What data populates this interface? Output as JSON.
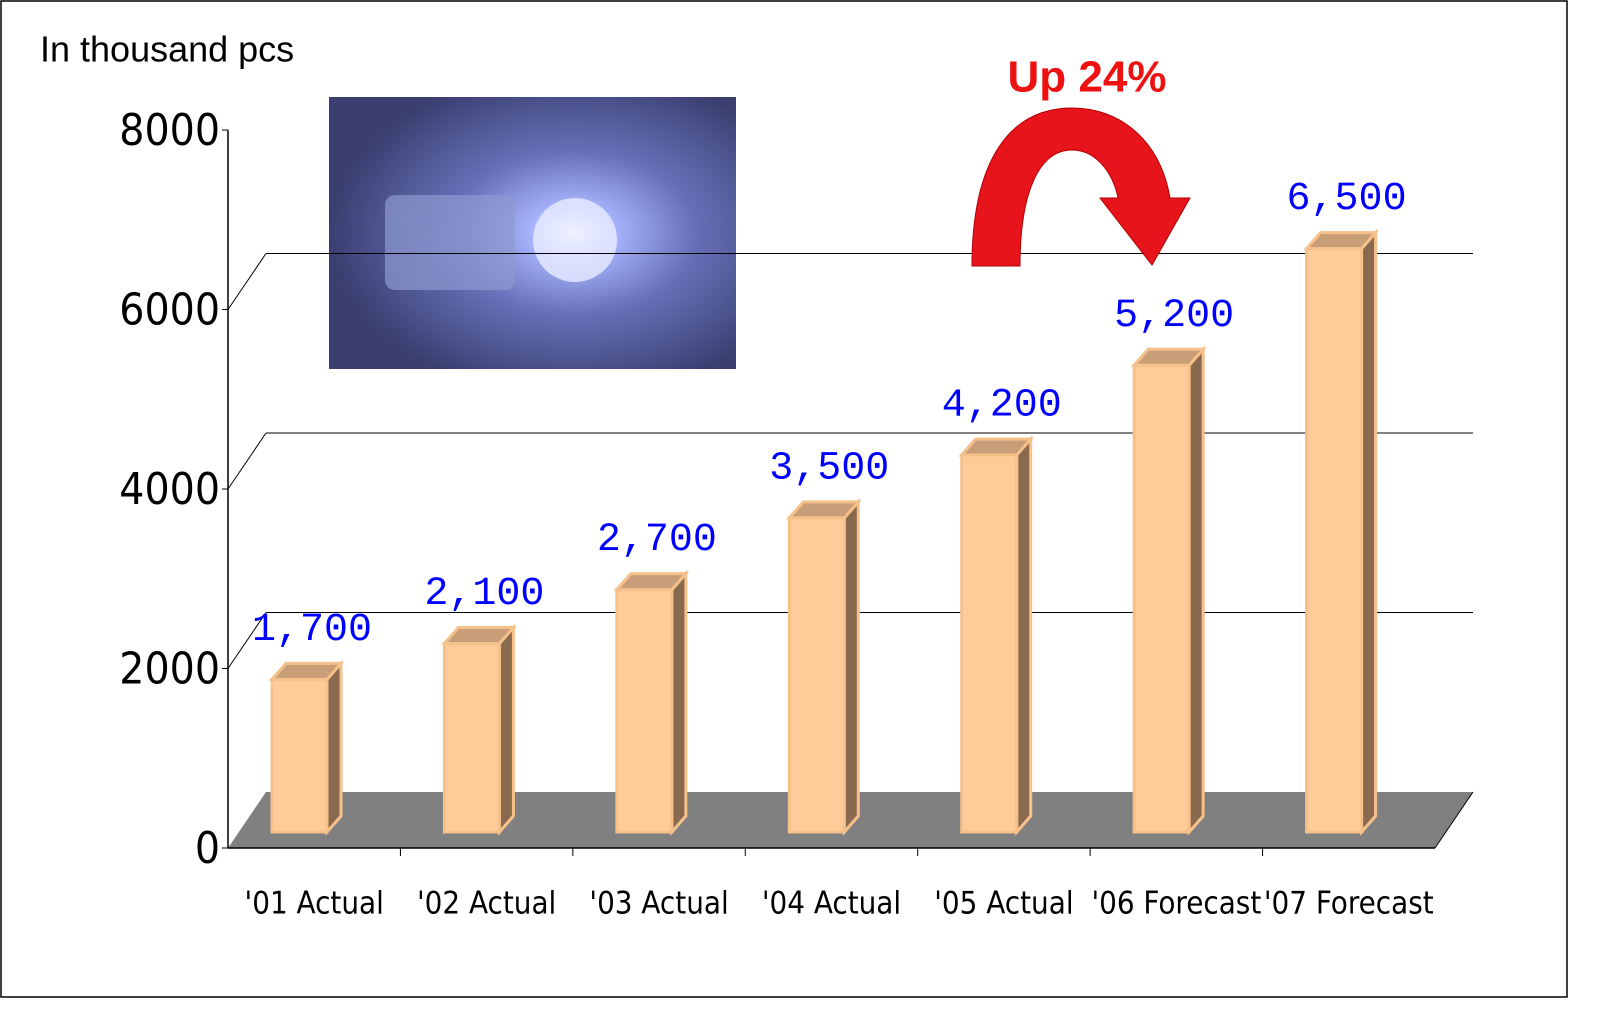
{
  "chart_data": {
    "type": "bar3d",
    "y_label": "In thousand pcs",
    "annotation": "Up 24%",
    "categories": [
      "'01 Actual",
      "'02 Actual",
      "'03 Actual",
      "'04 Actual",
      "'05 Actual",
      "'06 Forecast",
      "'07 Forecast"
    ],
    "values": [
      1700,
      2100,
      2700,
      3500,
      4200,
      5200,
      6500
    ],
    "value_labels": [
      "1,700",
      "2,100",
      "2,700",
      "3,500",
      "4,200",
      "5,200",
      "6,500"
    ],
    "color": "#ffcc99",
    "label_color": "#0000ff",
    "ylim": [
      0,
      8000
    ],
    "yticks": [
      0,
      2000,
      4000,
      6000,
      8000
    ],
    "grid": true
  }
}
